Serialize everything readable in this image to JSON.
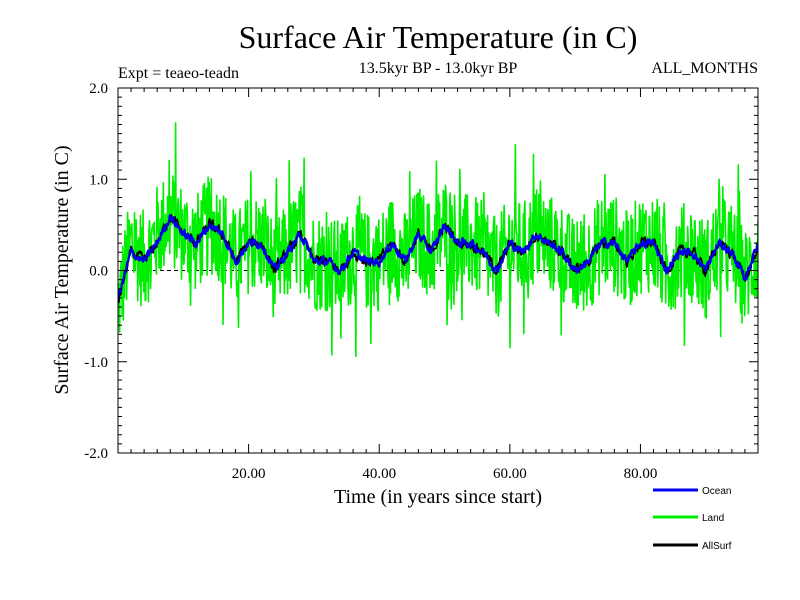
{
  "chart_data": {
    "type": "line",
    "title": "Surface Air Temperature (in C)",
    "subtitle": "13.5kyr BP - 13.0kyr BP",
    "left_note": "Expt = teaeo-teadn",
    "right_note": "ALL_MONTHS",
    "xlabel": "Time (in years since start)",
    "ylabel": "Surface Air Temperature (in C)",
    "xlim": [
      0,
      98
    ],
    "ylim": [
      -2.0,
      2.0
    ],
    "x_ticks": [
      20,
      40,
      60,
      80
    ],
    "x_tick_labels": [
      "20.00",
      "40.00",
      "60.00",
      "80.00"
    ],
    "y_ticks": [
      -2.0,
      -1.0,
      0.0,
      1.0,
      2.0
    ],
    "y_tick_labels": [
      "-2.0",
      "-1.0",
      "0.0",
      "1.0",
      "2.0"
    ],
    "zero_line": true,
    "legend_position": "bottom-right",
    "series": [
      {
        "name": "Land",
        "color": "#00ee00",
        "x": [
          0,
          2,
          4,
          6,
          8,
          10,
          12,
          14,
          16,
          18,
          20,
          22,
          24,
          26,
          28,
          30,
          32,
          34,
          36,
          38,
          40,
          42,
          44,
          46,
          48,
          50,
          52,
          54,
          56,
          58,
          60,
          62,
          64,
          66,
          68,
          70,
          72,
          74,
          76,
          78,
          80,
          82,
          84,
          86,
          88,
          90,
          92,
          94,
          96,
          98
        ],
        "values": [
          -0.4,
          0.3,
          0.1,
          0.4,
          0.6,
          0.4,
          0.3,
          0.5,
          0.4,
          0.1,
          0.3,
          0.3,
          0.0,
          0.2,
          0.4,
          0.1,
          0.1,
          0.0,
          0.2,
          0.1,
          0.1,
          0.3,
          0.1,
          0.4,
          0.2,
          0.5,
          0.3,
          0.3,
          0.2,
          0.0,
          0.3,
          0.2,
          0.4,
          0.3,
          0.2,
          0.0,
          0.1,
          0.3,
          0.3,
          0.1,
          0.3,
          0.3,
          0.0,
          0.2,
          0.2,
          0.0,
          0.3,
          0.2,
          -0.1,
          0.2
        ]
      },
      {
        "name": "Ocean",
        "color": "#0000ee",
        "x": [
          0,
          2,
          4,
          6,
          8,
          10,
          12,
          14,
          16,
          18,
          20,
          22,
          24,
          26,
          28,
          30,
          32,
          34,
          36,
          38,
          40,
          42,
          44,
          46,
          48,
          50,
          52,
          54,
          56,
          58,
          60,
          62,
          64,
          66,
          68,
          70,
          72,
          74,
          76,
          78,
          80,
          82,
          84,
          86,
          88,
          90,
          92,
          94,
          96,
          98
        ],
        "values": [
          -0.3,
          0.2,
          0.1,
          0.3,
          0.6,
          0.4,
          0.3,
          0.5,
          0.4,
          0.1,
          0.3,
          0.3,
          0.0,
          0.2,
          0.4,
          0.1,
          0.1,
          0.0,
          0.2,
          0.1,
          0.1,
          0.3,
          0.1,
          0.4,
          0.2,
          0.5,
          0.3,
          0.3,
          0.2,
          0.0,
          0.3,
          0.2,
          0.4,
          0.3,
          0.2,
          0.0,
          0.1,
          0.3,
          0.3,
          0.1,
          0.3,
          0.3,
          0.0,
          0.2,
          0.2,
          0.0,
          0.3,
          0.2,
          -0.1,
          0.3
        ]
      },
      {
        "name": "AllSurf",
        "color": "#000000",
        "x": [
          0,
          2,
          4,
          6,
          8,
          10,
          12,
          14,
          16,
          18,
          20,
          22,
          24,
          26,
          28,
          30,
          32,
          34,
          36,
          38,
          40,
          42,
          44,
          46,
          48,
          50,
          52,
          54,
          56,
          58,
          60,
          62,
          64,
          66,
          68,
          70,
          72,
          74,
          76,
          78,
          80,
          82,
          84,
          86,
          88,
          90,
          92,
          94,
          96,
          98
        ],
        "values": [
          -0.35,
          0.2,
          0.1,
          0.3,
          0.6,
          0.4,
          0.3,
          0.5,
          0.4,
          0.1,
          0.3,
          0.3,
          0.0,
          0.2,
          0.4,
          0.1,
          0.1,
          0.0,
          0.2,
          0.1,
          0.1,
          0.3,
          0.1,
          0.4,
          0.2,
          0.5,
          0.3,
          0.3,
          0.2,
          0.0,
          0.3,
          0.2,
          0.4,
          0.3,
          0.2,
          0.0,
          0.1,
          0.3,
          0.3,
          0.1,
          0.3,
          0.3,
          0.0,
          0.2,
          0.2,
          0.0,
          0.3,
          0.2,
          -0.1,
          0.25
        ]
      }
    ]
  }
}
